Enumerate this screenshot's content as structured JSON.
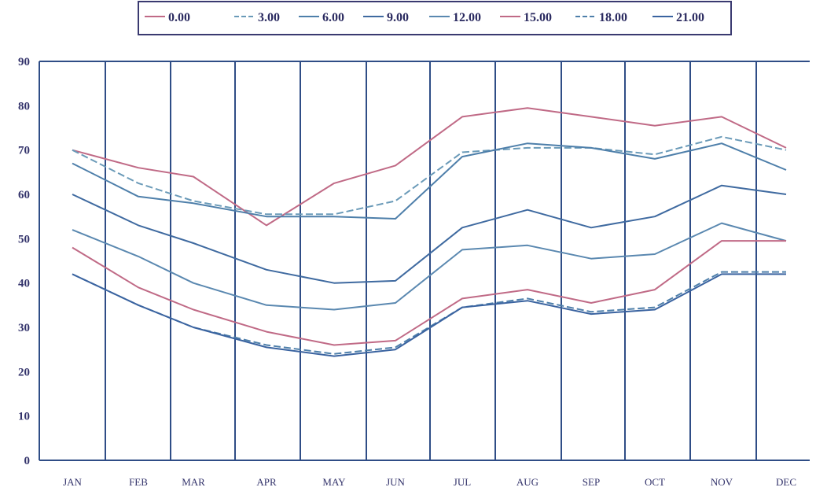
{
  "chart_data": {
    "type": "line",
    "categories": [
      "JAN",
      "FEB",
      "MAR",
      "APR",
      "MAY",
      "JUN",
      "JUL",
      "AUG",
      "SEP",
      "OCT",
      "NOV",
      "DEC"
    ],
    "ylim": [
      0,
      90
    ],
    "yticks": [
      "0",
      "10",
      "20",
      "30",
      "40",
      "50",
      "60",
      "70",
      "80",
      "90"
    ],
    "grid": "vertical lines at each month",
    "legend_position": "top-center",
    "series": [
      {
        "name": "0.00",
        "color": "#c06a86",
        "dash": "solid",
        "values": [
          70,
          66,
          64,
          53,
          62.5,
          66.5,
          77.5,
          79.5,
          77.5,
          75.5,
          77.5,
          70.5
        ]
      },
      {
        "name": "3.00",
        "color": "#6a9ab8",
        "dash": "dashed",
        "values": [
          70,
          62.5,
          58.5,
          55.5,
          55.5,
          58.5,
          69.5,
          70.5,
          70.5,
          69,
          73,
          70
        ]
      },
      {
        "name": "6.00",
        "color": "#4e7faa",
        "dash": "solid",
        "values": [
          67,
          59.5,
          58,
          55,
          55,
          54.5,
          68.5,
          71.5,
          70.5,
          68,
          71.5,
          65.5
        ]
      },
      {
        "name": "9.00",
        "color": "#3f6aa0",
        "dash": "solid",
        "values": [
          60,
          53,
          49,
          43,
          40,
          40.5,
          52.5,
          56.5,
          52.5,
          55,
          62,
          60
        ]
      },
      {
        "name": "12.00",
        "color": "#5a88b0",
        "dash": "solid",
        "values": [
          52,
          46,
          40,
          35,
          34,
          35.5,
          47.5,
          48.5,
          45.5,
          46.5,
          53.5,
          49.5
        ]
      },
      {
        "name": "15.00",
        "color": "#c06a86",
        "dash": "solid",
        "values": [
          48,
          39,
          34,
          29,
          26,
          27,
          36.5,
          38.5,
          35.5,
          38.5,
          49.5,
          49.5
        ]
      },
      {
        "name": "18.00",
        "color": "#4e7faa",
        "dash": "dashed",
        "values": [
          42,
          35,
          30,
          26,
          24,
          25.5,
          34.5,
          36.5,
          33.5,
          34.5,
          42.5,
          42.5
        ]
      },
      {
        "name": "21.00",
        "color": "#3a63a0",
        "dash": "solid",
        "values": [
          42,
          35,
          30,
          25.5,
          23.5,
          25,
          34.5,
          36,
          33,
          34,
          42,
          42
        ]
      }
    ]
  }
}
